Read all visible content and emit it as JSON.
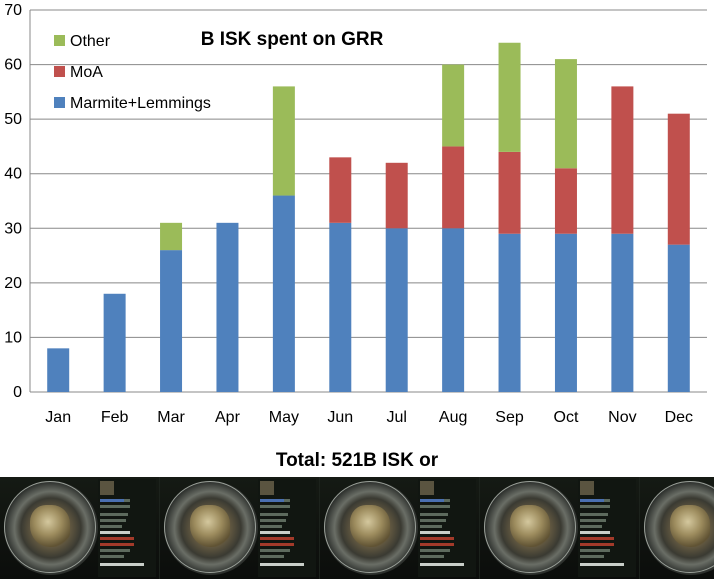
{
  "chart_data": {
    "type": "bar",
    "stacked": true,
    "title": "B ISK spent on GRR",
    "categories": [
      "Jan",
      "Feb",
      "Mar",
      "Apr",
      "May",
      "Jun",
      "Jul",
      "Aug",
      "Sep",
      "Oct",
      "Nov",
      "Dec"
    ],
    "series": [
      {
        "name": "Marmite+Lemmings",
        "color": "#4f81bd",
        "values": [
          8,
          18,
          26,
          31,
          36,
          31,
          30,
          30,
          29,
          29,
          29,
          27
        ]
      },
      {
        "name": "MoA",
        "color": "#c0504d",
        "values": [
          0,
          0,
          0,
          0,
          0,
          12,
          12,
          15,
          15,
          12,
          27,
          24
        ]
      },
      {
        "name": "Other",
        "color": "#9bbb59",
        "values": [
          0,
          0,
          5,
          0,
          20,
          0,
          0,
          15,
          20,
          20,
          0,
          0
        ]
      }
    ],
    "legend_order": [
      "Other",
      "MoA",
      "Marmite+Lemmings"
    ],
    "legend_position": "top-left",
    "ylim": [
      0,
      70
    ],
    "yticks": [
      0,
      10,
      20,
      30,
      40,
      50,
      60,
      70
    ],
    "grid": true
  },
  "footer": {
    "total_text": "Total: 521B ISK or"
  }
}
